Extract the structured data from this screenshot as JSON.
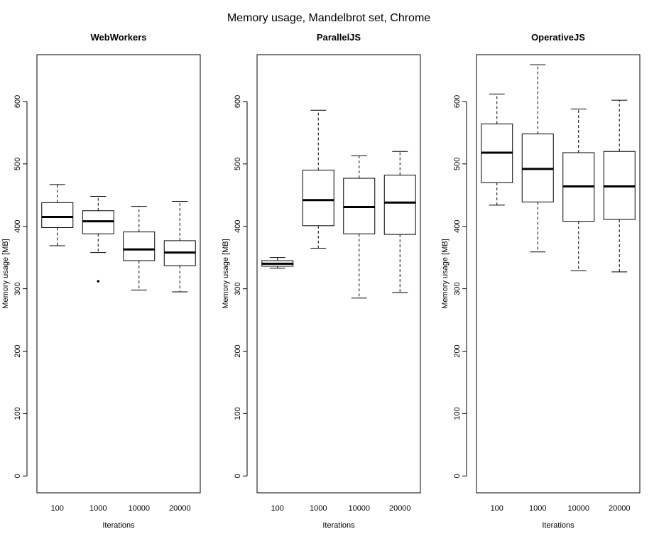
{
  "figure": {
    "title": "Memory usage, Mandelbrot set, Chrome"
  },
  "chart_data": [
    {
      "type": "boxplot",
      "title": "WebWorkers",
      "xlabel": "Iterations",
      "ylabel": "Memory usage [MB]",
      "categories": [
        "100",
        "1000",
        "10000",
        "20000"
      ],
      "y_ticks": [
        0,
        100,
        200,
        300,
        400,
        500,
        600
      ],
      "ylim": [
        -27,
        675
      ],
      "grid": false,
      "boxes": [
        {
          "category": "100",
          "whisker_low": 369,
          "q1": 398,
          "median": 415,
          "q3": 438,
          "whisker_high": 467,
          "outliers": []
        },
        {
          "category": "1000",
          "whisker_low": 358,
          "q1": 388,
          "median": 408,
          "q3": 425,
          "whisker_high": 448,
          "outliers": [
            312
          ]
        },
        {
          "category": "10000",
          "whisker_low": 298,
          "q1": 345,
          "median": 363,
          "q3": 391,
          "whisker_high": 432,
          "outliers": []
        },
        {
          "category": "20000",
          "whisker_low": 295,
          "q1": 337,
          "median": 358,
          "q3": 377,
          "whisker_high": 440,
          "outliers": []
        }
      ]
    },
    {
      "type": "boxplot",
      "title": "ParallelJS",
      "xlabel": "Iterations",
      "ylabel": "Memory usage [MB]",
      "categories": [
        "100",
        "1000",
        "10000",
        "20000"
      ],
      "y_ticks": [
        0,
        100,
        200,
        300,
        400,
        500,
        600
      ],
      "ylim": [
        -27,
        675
      ],
      "grid": false,
      "boxes": [
        {
          "category": "100",
          "whisker_low": 333,
          "q1": 336,
          "median": 340,
          "q3": 345,
          "whisker_high": 350,
          "outliers": []
        },
        {
          "category": "1000",
          "whisker_low": 365,
          "q1": 401,
          "median": 442,
          "q3": 490,
          "whisker_high": 586,
          "outliers": []
        },
        {
          "category": "10000",
          "whisker_low": 285,
          "q1": 388,
          "median": 431,
          "q3": 477,
          "whisker_high": 513,
          "outliers": []
        },
        {
          "category": "20000",
          "whisker_low": 294,
          "q1": 387,
          "median": 438,
          "q3": 482,
          "whisker_high": 520,
          "outliers": []
        }
      ]
    },
    {
      "type": "boxplot",
      "title": "OperativeJS",
      "xlabel": "Iterations",
      "ylabel": "Memory usage [MB]",
      "categories": [
        "100",
        "1000",
        "10000",
        "20000"
      ],
      "y_ticks": [
        0,
        100,
        200,
        300,
        400,
        500,
        600
      ],
      "ylim": [
        -27,
        675
      ],
      "grid": false,
      "boxes": [
        {
          "category": "100",
          "whisker_low": 434,
          "q1": 470,
          "median": 518,
          "q3": 564,
          "whisker_high": 612,
          "outliers": []
        },
        {
          "category": "1000",
          "whisker_low": 359,
          "q1": 439,
          "median": 492,
          "q3": 548,
          "whisker_high": 659,
          "outliers": []
        },
        {
          "category": "10000",
          "whisker_low": 329,
          "q1": 408,
          "median": 464,
          "q3": 518,
          "whisker_high": 588,
          "outliers": []
        },
        {
          "category": "20000",
          "whisker_low": 327,
          "q1": 411,
          "median": 464,
          "q3": 520,
          "whisker_high": 602,
          "outliers": []
        }
      ]
    }
  ]
}
